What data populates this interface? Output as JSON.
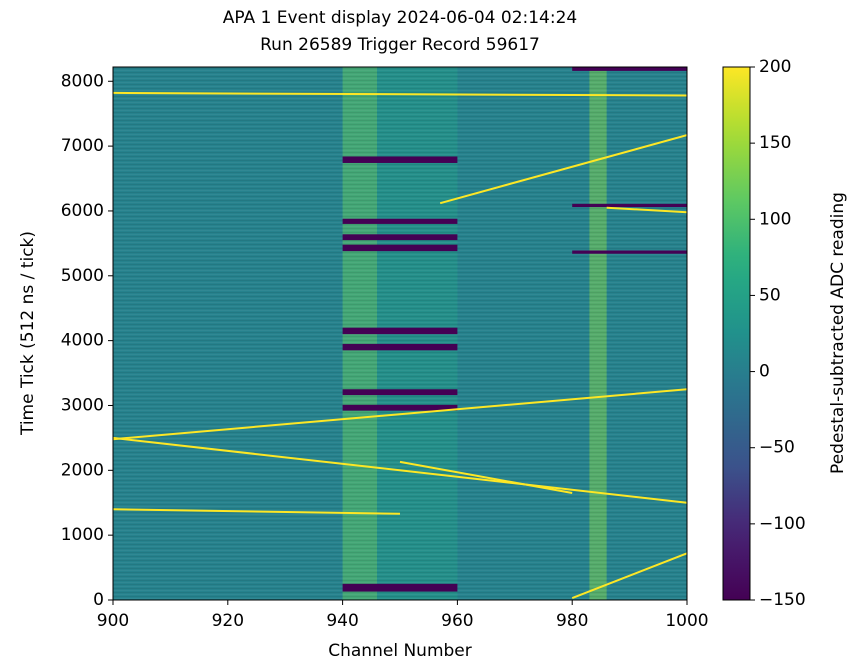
{
  "chart_data": {
    "type": "heatmap",
    "title": "APA 1 Event display 2024-06-04 02:14:24",
    "subtitle": "Run 26589 Trigger Record 59617",
    "x_label": "Channel Number",
    "y_label": "Time Tick (512 ns / tick)",
    "colorbar_label": "Pedestal-subtracted ADC reading",
    "colormap": "viridis",
    "xlim": [
      900,
      1000
    ],
    "ylim": [
      0,
      8220
    ],
    "xticks": [
      900,
      920,
      940,
      960,
      980,
      1000
    ],
    "yticks": [
      0,
      1000,
      2000,
      3000,
      4000,
      5000,
      6000,
      7000,
      8000
    ],
    "clim": [
      -150,
      200
    ],
    "cticks": [
      {
        "value": -150,
        "label": "−150"
      },
      {
        "value": -100,
        "label": "−100"
      },
      {
        "value": -50,
        "label": "−50"
      },
      0,
      50,
      100,
      150,
      200
    ],
    "background_value": 5,
    "stripes": [
      {
        "x": [
          940,
          946
        ],
        "value": 110
      },
      {
        "x": [
          946,
          960
        ],
        "value": 40
      },
      {
        "x": [
          983,
          986
        ],
        "value": 130
      }
    ],
    "bands": [
      {
        "x": [
          940,
          960
        ],
        "y": [
          130,
          250
        ],
        "value": -150
      },
      {
        "x": [
          940,
          960
        ],
        "y": [
          2920,
          3010
        ],
        "value": -150
      },
      {
        "x": [
          940,
          960
        ],
        "y": [
          3160,
          3250
        ],
        "value": -150
      },
      {
        "x": [
          940,
          960
        ],
        "y": [
          3850,
          3950
        ],
        "value": -150
      },
      {
        "x": [
          940,
          960
        ],
        "y": [
          4100,
          4200
        ],
        "value": -150
      },
      {
        "x": [
          940,
          960
        ],
        "y": [
          5380,
          5480
        ],
        "value": -150
      },
      {
        "x": [
          940,
          960
        ],
        "y": [
          5550,
          5640
        ],
        "value": -150
      },
      {
        "x": [
          940,
          960
        ],
        "y": [
          5800,
          5880
        ],
        "value": -150
      },
      {
        "x": [
          940,
          960
        ],
        "y": [
          6740,
          6840
        ],
        "value": -150
      },
      {
        "x": [
          980,
          1000
        ],
        "y": [
          6060,
          6110
        ],
        "value": -150
      },
      {
        "x": [
          980,
          1000
        ],
        "y": [
          5340,
          5390
        ],
        "value": -150
      },
      {
        "x": [
          980,
          1000
        ],
        "y": [
          8160,
          8220
        ],
        "value": -150
      }
    ],
    "tracks": [
      {
        "x": [
          900,
          1000
        ],
        "y": [
          2500,
          1500
        ],
        "value": 200
      },
      {
        "x": [
          900,
          1000
        ],
        "y": [
          2480,
          3250
        ],
        "value": 200
      },
      {
        "x": [
          900,
          1000
        ],
        "y": [
          7820,
          7780
        ],
        "value": 200
      },
      {
        "x": [
          957,
          1000
        ],
        "y": [
          6120,
          7170
        ],
        "value": 200
      },
      {
        "x": [
          980,
          1000
        ],
        "y": [
          30,
          720
        ],
        "value": 200
      },
      {
        "x": [
          900,
          950
        ],
        "y": [
          1400,
          1330
        ],
        "value": 200
      },
      {
        "x": [
          986,
          1000
        ],
        "y": [
          6050,
          5980
        ],
        "value": 200
      },
      {
        "x": [
          950,
          980
        ],
        "y": [
          2130,
          1650
        ],
        "value": 200
      }
    ]
  }
}
